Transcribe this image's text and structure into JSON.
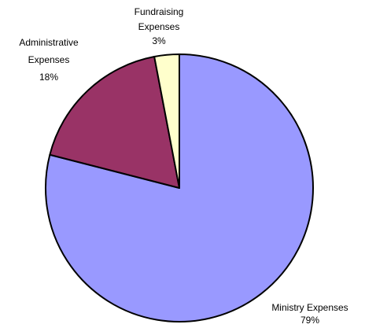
{
  "chart_data": {
    "type": "pie",
    "title": "",
    "legend": "none",
    "slices": [
      {
        "label_lines": [
          "Ministry Expenses",
          "79%"
        ],
        "value": 79,
        "color": "#9999FF"
      },
      {
        "label_lines": [
          "Administrative",
          "Expenses",
          "18%"
        ],
        "value": 18,
        "color": "#993366"
      },
      {
        "label_lines": [
          "Fundraising",
          "Expenses",
          "3%"
        ],
        "value": 3,
        "color": "#FFFFCC"
      }
    ]
  }
}
